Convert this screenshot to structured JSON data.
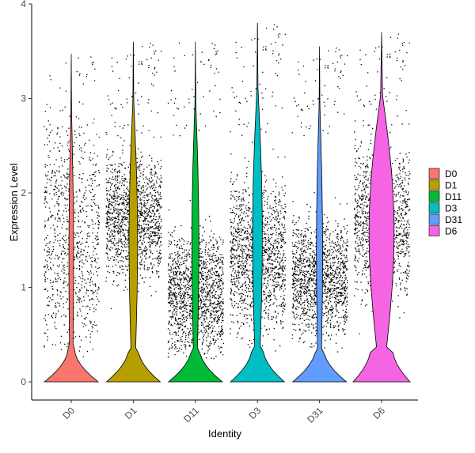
{
  "chart_data": {
    "type": "violin",
    "xlabel": "Identity",
    "ylabel": "Expression Level",
    "ylim": [
      0,
      4
    ],
    "yticks": [
      0,
      1,
      2,
      3,
      4
    ],
    "categories": [
      "D0",
      "D1",
      "D11",
      "D3",
      "D31",
      "D6"
    ],
    "colors": {
      "D0": "#F8766D",
      "D1": "#B79F00",
      "D11": "#00BA38",
      "D3": "#00BFC4",
      "D31": "#619CFF",
      "D6": "#F564E3"
    },
    "series": [
      {
        "name": "D0",
        "max": 3.47,
        "median": 0,
        "points": "jittered single cells, sparse above 0"
      },
      {
        "name": "D1",
        "max": 3.6,
        "median": 0,
        "points": "jittered single cells, dense 0.9-2.6"
      },
      {
        "name": "D11",
        "max": 3.6,
        "median": 0,
        "points": "jittered single cells, dense 0.3-1.6"
      },
      {
        "name": "D3",
        "max": 3.8,
        "median": 0,
        "points": "jittered single cells, dense 0.5-2.3"
      },
      {
        "name": "D31",
        "max": 3.55,
        "median": 0,
        "points": "jittered single cells, dense 0.4-1.8"
      },
      {
        "name": "D6",
        "max": 3.7,
        "median": 0,
        "points": "jittered single cells, dense 0.8-2.4"
      }
    ],
    "legend": {
      "placement": "right",
      "entries": [
        "D0",
        "D1",
        "D11",
        "D3",
        "D31",
        "D6"
      ]
    },
    "grid": false
  }
}
